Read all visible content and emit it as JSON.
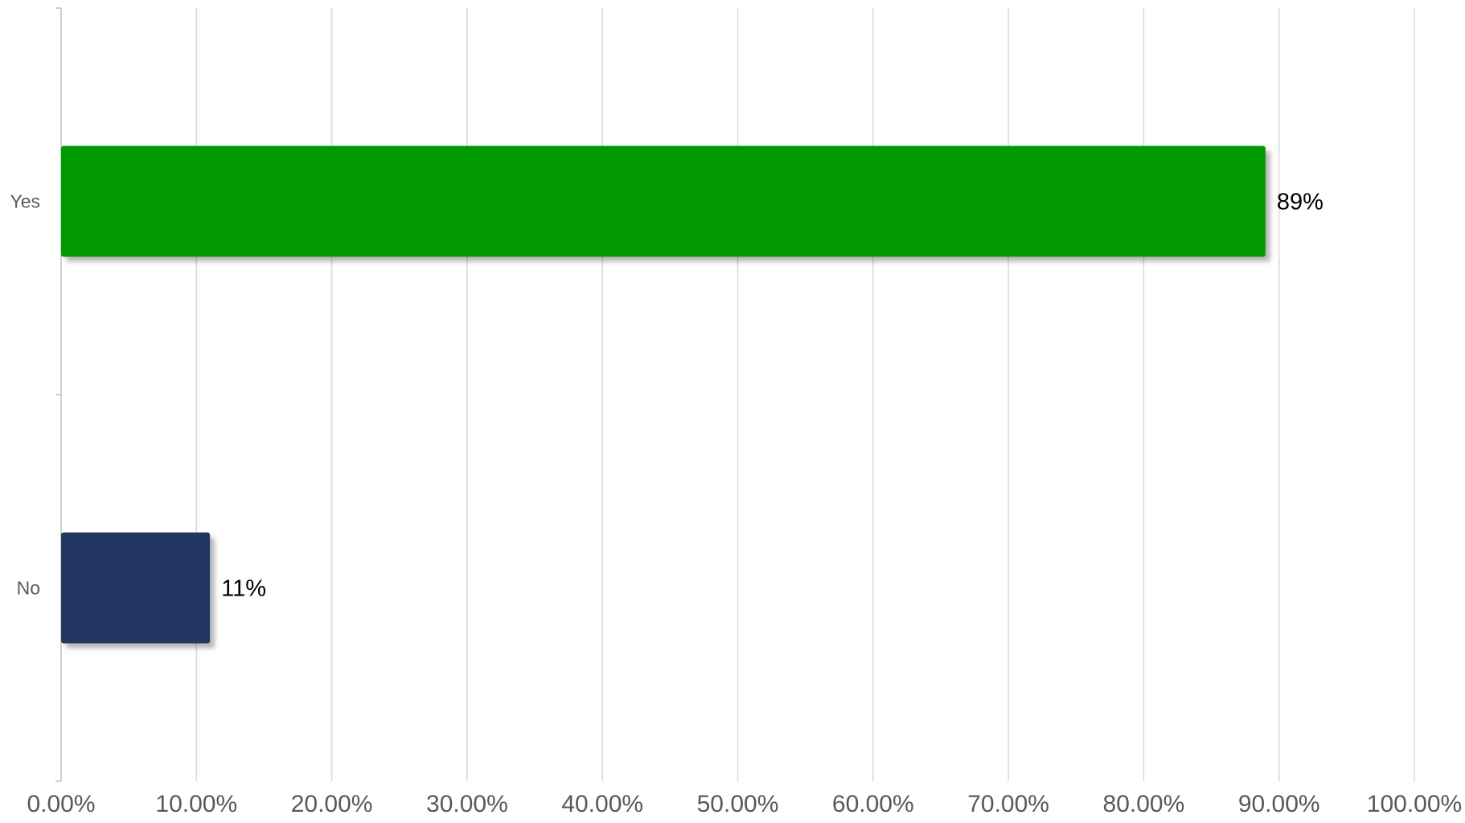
{
  "chart_data": {
    "type": "bar",
    "orientation": "horizontal",
    "categories": [
      "Yes",
      "No"
    ],
    "values": [
      0.89,
      0.11
    ],
    "data_labels": [
      "89%",
      "11%"
    ],
    "bar_colors": [
      "#009900",
      "#203864"
    ],
    "xlim": [
      0,
      1
    ],
    "x_ticks": [
      0,
      0.1,
      0.2,
      0.3,
      0.4,
      0.5,
      0.6,
      0.7,
      0.8,
      0.9,
      1.0
    ],
    "x_tick_labels": [
      "0.00%",
      "10.00%",
      "20.00%",
      "30.00%",
      "40.00%",
      "50.00%",
      "60.00%",
      "70.00%",
      "80.00%",
      "90.00%",
      "100.00%"
    ],
    "grid": true,
    "title": "",
    "xlabel": "",
    "ylabel": "",
    "legend": "none"
  }
}
